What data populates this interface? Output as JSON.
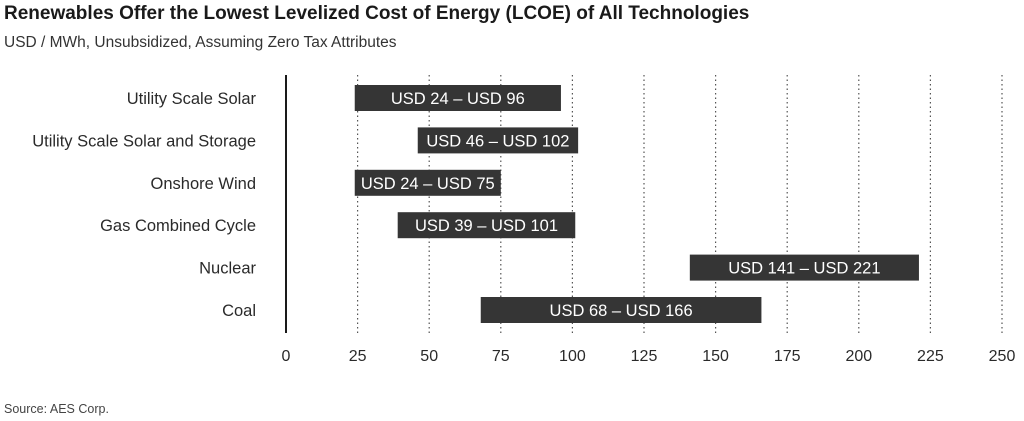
{
  "chart_data": {
    "type": "bar",
    "orientation": "horizontal-range",
    "title": "Renewables Offer the Lowest Levelized Cost of Energy (LCOE) of All Technologies",
    "subtitle": "USD / MWh, Unsubsidized, Assuming Zero Tax Attributes",
    "source": "Source: AES Corp.",
    "categories": [
      "Utility Scale Solar",
      "Utility Scale Solar and Storage",
      "Onshore Wind",
      "Gas Combined Cycle",
      "Nuclear",
      "Coal"
    ],
    "ranges": [
      {
        "min": 24,
        "max": 96,
        "label": "USD 24 – USD 96"
      },
      {
        "min": 46,
        "max": 102,
        "label": "USD 46 – USD 102"
      },
      {
        "min": 24,
        "max": 75,
        "label": "USD 24 – USD 75"
      },
      {
        "min": 39,
        "max": 101,
        "label": "USD 39 – USD 101"
      },
      {
        "min": 141,
        "max": 221,
        "label": "USD 141 – USD 221"
      },
      {
        "min": 68,
        "max": 166,
        "label": "USD 68 – USD 166"
      }
    ],
    "xticks": [
      0,
      25,
      50,
      75,
      100,
      125,
      150,
      175,
      200,
      225,
      250
    ],
    "xlim": [
      0,
      250
    ],
    "grid": "vertical dotted",
    "bar_color": "#353535"
  }
}
